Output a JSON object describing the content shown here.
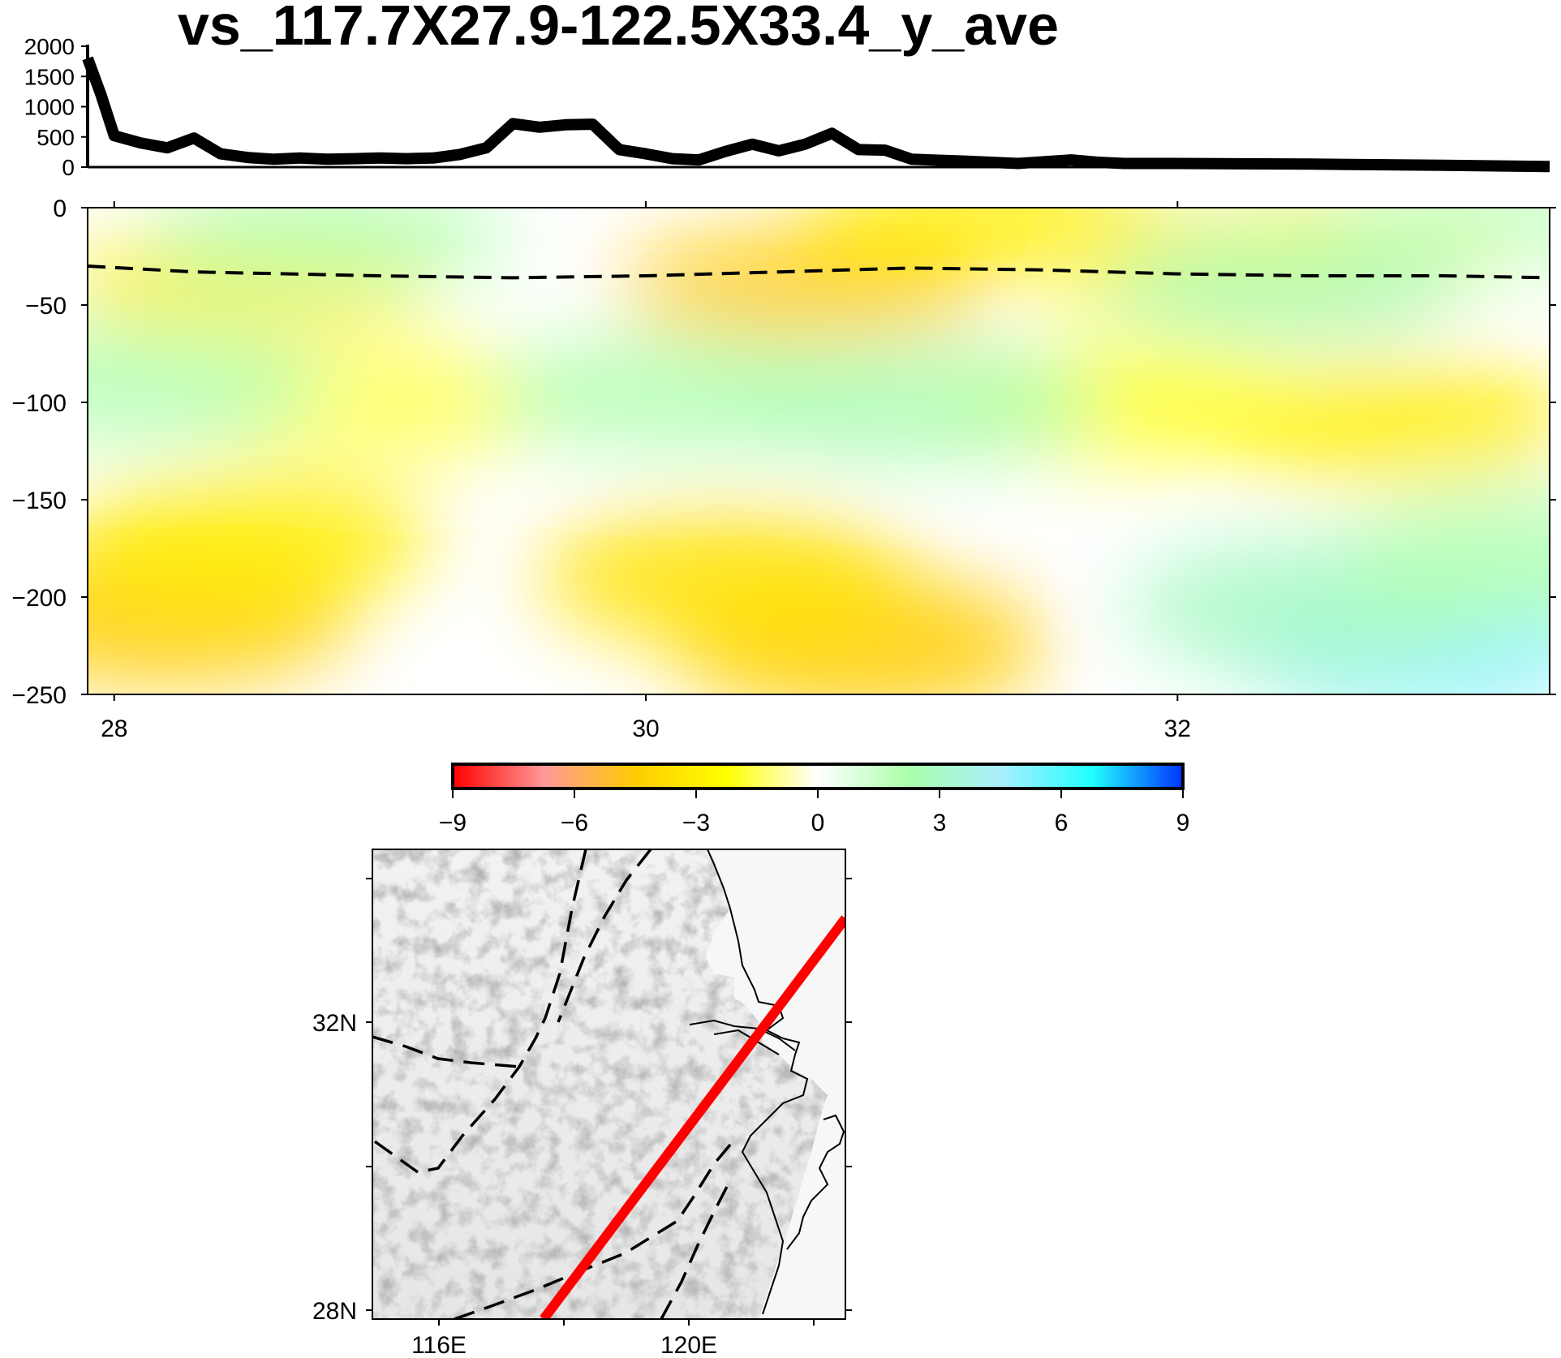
{
  "title": "vs_117.7X27.9-122.5X33.4_y_ave",
  "colors": {
    "line": "#000000",
    "profile_line": "#ff0000",
    "moho": "#000000"
  },
  "chart_data": [
    {
      "type": "line",
      "name": "topography",
      "x": [
        27.9,
        27.95,
        28.0,
        28.1,
        28.2,
        28.3,
        28.4,
        28.5,
        28.6,
        28.7,
        28.8,
        28.9,
        29.0,
        29.1,
        29.2,
        29.3,
        29.4,
        29.5,
        29.6,
        29.7,
        29.8,
        29.9,
        30.0,
        30.1,
        30.2,
        30.3,
        30.4,
        30.5,
        30.6,
        30.7,
        30.8,
        30.9,
        31.0,
        31.2,
        31.4,
        31.6,
        31.7,
        31.8,
        32.0,
        32.5,
        33.0,
        33.4
      ],
      "values": [
        1800,
        1200,
        520,
        400,
        320,
        480,
        220,
        160,
        130,
        150,
        130,
        140,
        150,
        140,
        150,
        210,
        320,
        720,
        660,
        700,
        710,
        290,
        220,
        140,
        120,
        260,
        380,
        270,
        380,
        560,
        290,
        280,
        130,
        100,
        60,
        120,
        80,
        60,
        60,
        50,
        30,
        10
      ],
      "ylim": [
        0,
        2000
      ],
      "yticks": [
        "2000",
        "1500",
        "1000",
        "500",
        "0"
      ],
      "xlim": [
        27.9,
        33.4
      ]
    },
    {
      "type": "heatmap",
      "name": "vs-section",
      "xlim": [
        27.9,
        33.4
      ],
      "ylim": [
        -250,
        0
      ],
      "xticks": [
        "28",
        "30",
        "32"
      ],
      "yticks": [
        "0",
        "−50",
        "−100",
        "−150",
        "−200",
        "−250"
      ],
      "colorbar": {
        "range": [
          -9,
          9
        ],
        "ticks": [
          "−9",
          "−6",
          "−3",
          "0",
          "3",
          "6",
          "9"
        ],
        "stops": [
          "#ff0000",
          "#ff9999",
          "#ffcc00",
          "#ffff00",
          "#ffffff",
          "#aaffaa",
          "#aaeeff",
          "#22ffff",
          "#0033ff"
        ]
      },
      "anomalies": [
        {
          "x": 28.2,
          "y": -210,
          "value": -4.5
        },
        {
          "x": 28.5,
          "y": -170,
          "value": -3
        },
        {
          "x": 30.8,
          "y": -225,
          "value": -4.5
        },
        {
          "x": 30.3,
          "y": -190,
          "value": -3.5
        },
        {
          "x": 32.8,
          "y": -110,
          "value": -3
        },
        {
          "x": 31.8,
          "y": -100,
          "value": -2
        },
        {
          "x": 30.6,
          "y": -40,
          "value": -4.5
        },
        {
          "x": 28.5,
          "y": -38,
          "value": -3
        },
        {
          "x": 32.2,
          "y": -35,
          "value": -2.5
        },
        {
          "x": 31.3,
          "y": -5,
          "value": -3
        },
        {
          "x": 32.6,
          "y": -20,
          "value": -2.5
        },
        {
          "x": 29.0,
          "y": -100,
          "value": -1.5
        },
        {
          "x": 28.1,
          "y": -90,
          "value": 2
        },
        {
          "x": 30.1,
          "y": -95,
          "value": 2
        },
        {
          "x": 31.0,
          "y": -100,
          "value": 2.5
        },
        {
          "x": 32.9,
          "y": -225,
          "value": 5
        },
        {
          "x": 32.5,
          "y": -205,
          "value": 3
        },
        {
          "x": 33.3,
          "y": -180,
          "value": 2
        },
        {
          "x": 28.8,
          "y": -15,
          "value": 2
        },
        {
          "x": 32.4,
          "y": -40,
          "value": 3
        },
        {
          "x": 33.3,
          "y": -5,
          "value": 1.5
        }
      ],
      "moho": {
        "x": [
          27.9,
          28.3,
          29.0,
          29.5,
          30.0,
          30.5,
          31.0,
          31.5,
          32.0,
          32.5,
          33.0,
          33.4
        ],
        "y": [
          -30,
          -33,
          -35,
          -36,
          -35,
          -33,
          -31,
          -32,
          -34,
          -35,
          -35,
          -36
        ]
      }
    },
    {
      "type": "map",
      "name": "location-map",
      "lon_ticks": [
        "116E",
        "120E"
      ],
      "lat_ticks": [
        "32N",
        "28N"
      ],
      "profile": {
        "start": [
          117.7,
          27.9
        ],
        "end": [
          122.5,
          33.4
        ]
      }
    }
  ]
}
